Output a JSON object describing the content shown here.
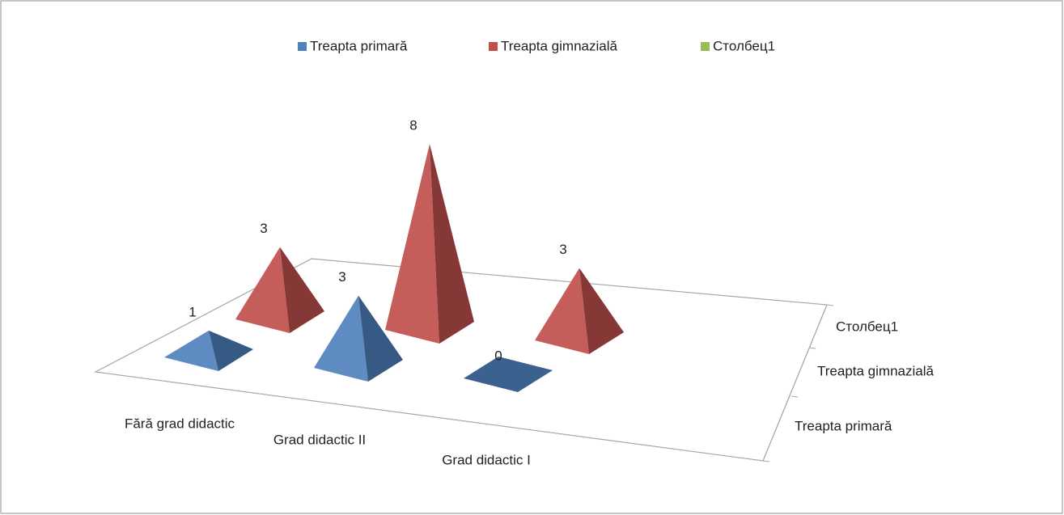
{
  "chart_data": {
    "type": "pyramid3d",
    "categories": [
      "Fără grad didactic",
      "Grad didactic II",
      "Grad didactic I"
    ],
    "series": [
      {
        "name": "Treapta primară",
        "color": "#4f81bd",
        "values": [
          1,
          3,
          0
        ]
      },
      {
        "name": "Treapta gimnazială",
        "color": "#c0504d",
        "values": [
          3,
          8,
          3
        ]
      },
      {
        "name": "Столбец1",
        "color": "#9bbb59",
        "values": [
          null,
          null,
          null
        ]
      }
    ],
    "legend": "top"
  }
}
